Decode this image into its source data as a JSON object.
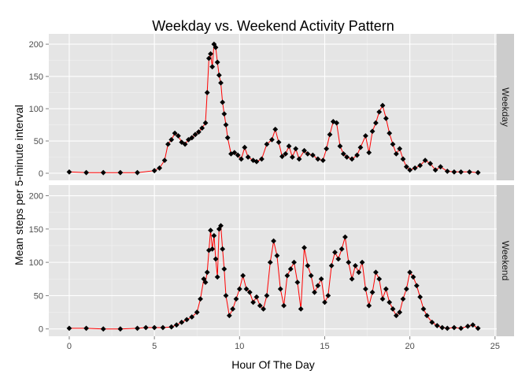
{
  "chart_data": {
    "type": "line",
    "title": "Weekday vs. Weekend Activity Pattern",
    "xlabel": "Hour Of The Day",
    "ylabel": "Mean steps per 5-minute interval",
    "xlim": [
      -1.2,
      25.1
    ],
    "ylim": [
      -11,
      216
    ],
    "x_ticks": [
      0,
      5,
      10,
      15,
      20,
      25
    ],
    "y_ticks": [
      0,
      50,
      100,
      150,
      200
    ],
    "line_color": "#ff0000",
    "point_color": "#000000",
    "panel_background": "#e5e5e5",
    "grid_color": "#ffffff",
    "strip_background": "#cccccc",
    "grid": true,
    "facets": [
      {
        "name": "Weekday",
        "x": [
          0,
          1,
          2,
          3,
          4,
          5,
          5.3,
          5.6,
          5.8,
          6.0,
          6.2,
          6.4,
          6.6,
          6.8,
          7.0,
          7.2,
          7.4,
          7.6,
          7.8,
          8.0,
          8.1,
          8.2,
          8.3,
          8.4,
          8.5,
          8.6,
          8.7,
          8.8,
          8.9,
          9.0,
          9.1,
          9.2,
          9.3,
          9.5,
          9.7,
          9.9,
          10.1,
          10.3,
          10.5,
          10.8,
          11.0,
          11.3,
          11.6,
          11.9,
          12.1,
          12.3,
          12.5,
          12.7,
          12.9,
          13.1,
          13.3,
          13.5,
          13.8,
          14.0,
          14.3,
          14.6,
          14.9,
          15.1,
          15.3,
          15.5,
          15.7,
          15.9,
          16.1,
          16.3,
          16.6,
          16.9,
          17.1,
          17.4,
          17.6,
          17.8,
          18.0,
          18.2,
          18.4,
          18.6,
          18.8,
          19.0,
          19.2,
          19.4,
          19.6,
          19.8,
          20.0,
          20.3,
          20.6,
          20.9,
          21.2,
          21.5,
          21.8,
          22.2,
          22.6,
          23.0,
          23.5,
          24.0
        ],
        "values": [
          2,
          1,
          1,
          1,
          1,
          4,
          8,
          20,
          45,
          52,
          62,
          58,
          48,
          45,
          52,
          55,
          60,
          64,
          70,
          78,
          125,
          178,
          185,
          165,
          200,
          195,
          172,
          152,
          140,
          110,
          92,
          75,
          55,
          30,
          32,
          28,
          22,
          40,
          25,
          20,
          18,
          22,
          45,
          52,
          68,
          48,
          26,
          30,
          42,
          25,
          38,
          22,
          35,
          30,
          28,
          22,
          20,
          38,
          60,
          80,
          78,
          42,
          30,
          25,
          22,
          28,
          40,
          58,
          32,
          65,
          78,
          95,
          105,
          85,
          62,
          45,
          30,
          38,
          22,
          10,
          5,
          8,
          12,
          20,
          15,
          5,
          10,
          3,
          2,
          2,
          2,
          1
        ]
      },
      {
        "name": "Weekend",
        "x": [
          0,
          1,
          2,
          3,
          4,
          4.5,
          5,
          5.5,
          6.0,
          6.3,
          6.6,
          6.9,
          7.2,
          7.5,
          7.7,
          7.9,
          8.0,
          8.1,
          8.2,
          8.3,
          8.4,
          8.5,
          8.6,
          8.7,
          8.8,
          8.9,
          9.0,
          9.1,
          9.2,
          9.4,
          9.6,
          9.8,
          10.0,
          10.2,
          10.4,
          10.6,
          10.8,
          11.0,
          11.2,
          11.4,
          11.6,
          11.8,
          12.0,
          12.2,
          12.4,
          12.6,
          12.8,
          13.0,
          13.2,
          13.4,
          13.6,
          13.8,
          14.0,
          14.2,
          14.4,
          14.6,
          14.8,
          15.0,
          15.2,
          15.4,
          15.6,
          15.8,
          16.0,
          16.2,
          16.4,
          16.6,
          16.8,
          17.0,
          17.2,
          17.4,
          17.6,
          17.8,
          18.0,
          18.2,
          18.4,
          18.6,
          18.8,
          19.0,
          19.2,
          19.4,
          19.6,
          19.8,
          20.0,
          20.2,
          20.4,
          20.6,
          20.8,
          21.0,
          21.3,
          21.6,
          21.9,
          22.2,
          22.6,
          23.0,
          23.4,
          23.7,
          24.0
        ],
        "values": [
          1,
          1,
          0,
          0,
          1,
          2,
          2,
          2,
          3,
          6,
          10,
          14,
          18,
          25,
          45,
          75,
          70,
          85,
          118,
          148,
          120,
          140,
          105,
          78,
          150,
          155,
          120,
          90,
          50,
          20,
          30,
          45,
          60,
          80,
          60,
          55,
          40,
          48,
          35,
          30,
          50,
          100,
          132,
          110,
          60,
          35,
          80,
          90,
          100,
          70,
          30,
          122,
          95,
          80,
          55,
          65,
          75,
          40,
          50,
          95,
          115,
          105,
          120,
          138,
          100,
          75,
          95,
          85,
          100,
          60,
          35,
          55,
          85,
          75,
          45,
          60,
          40,
          30,
          20,
          25,
          45,
          60,
          85,
          78,
          65,
          48,
          30,
          20,
          10,
          5,
          2,
          1,
          2,
          1,
          4,
          6,
          1
        ]
      }
    ]
  }
}
